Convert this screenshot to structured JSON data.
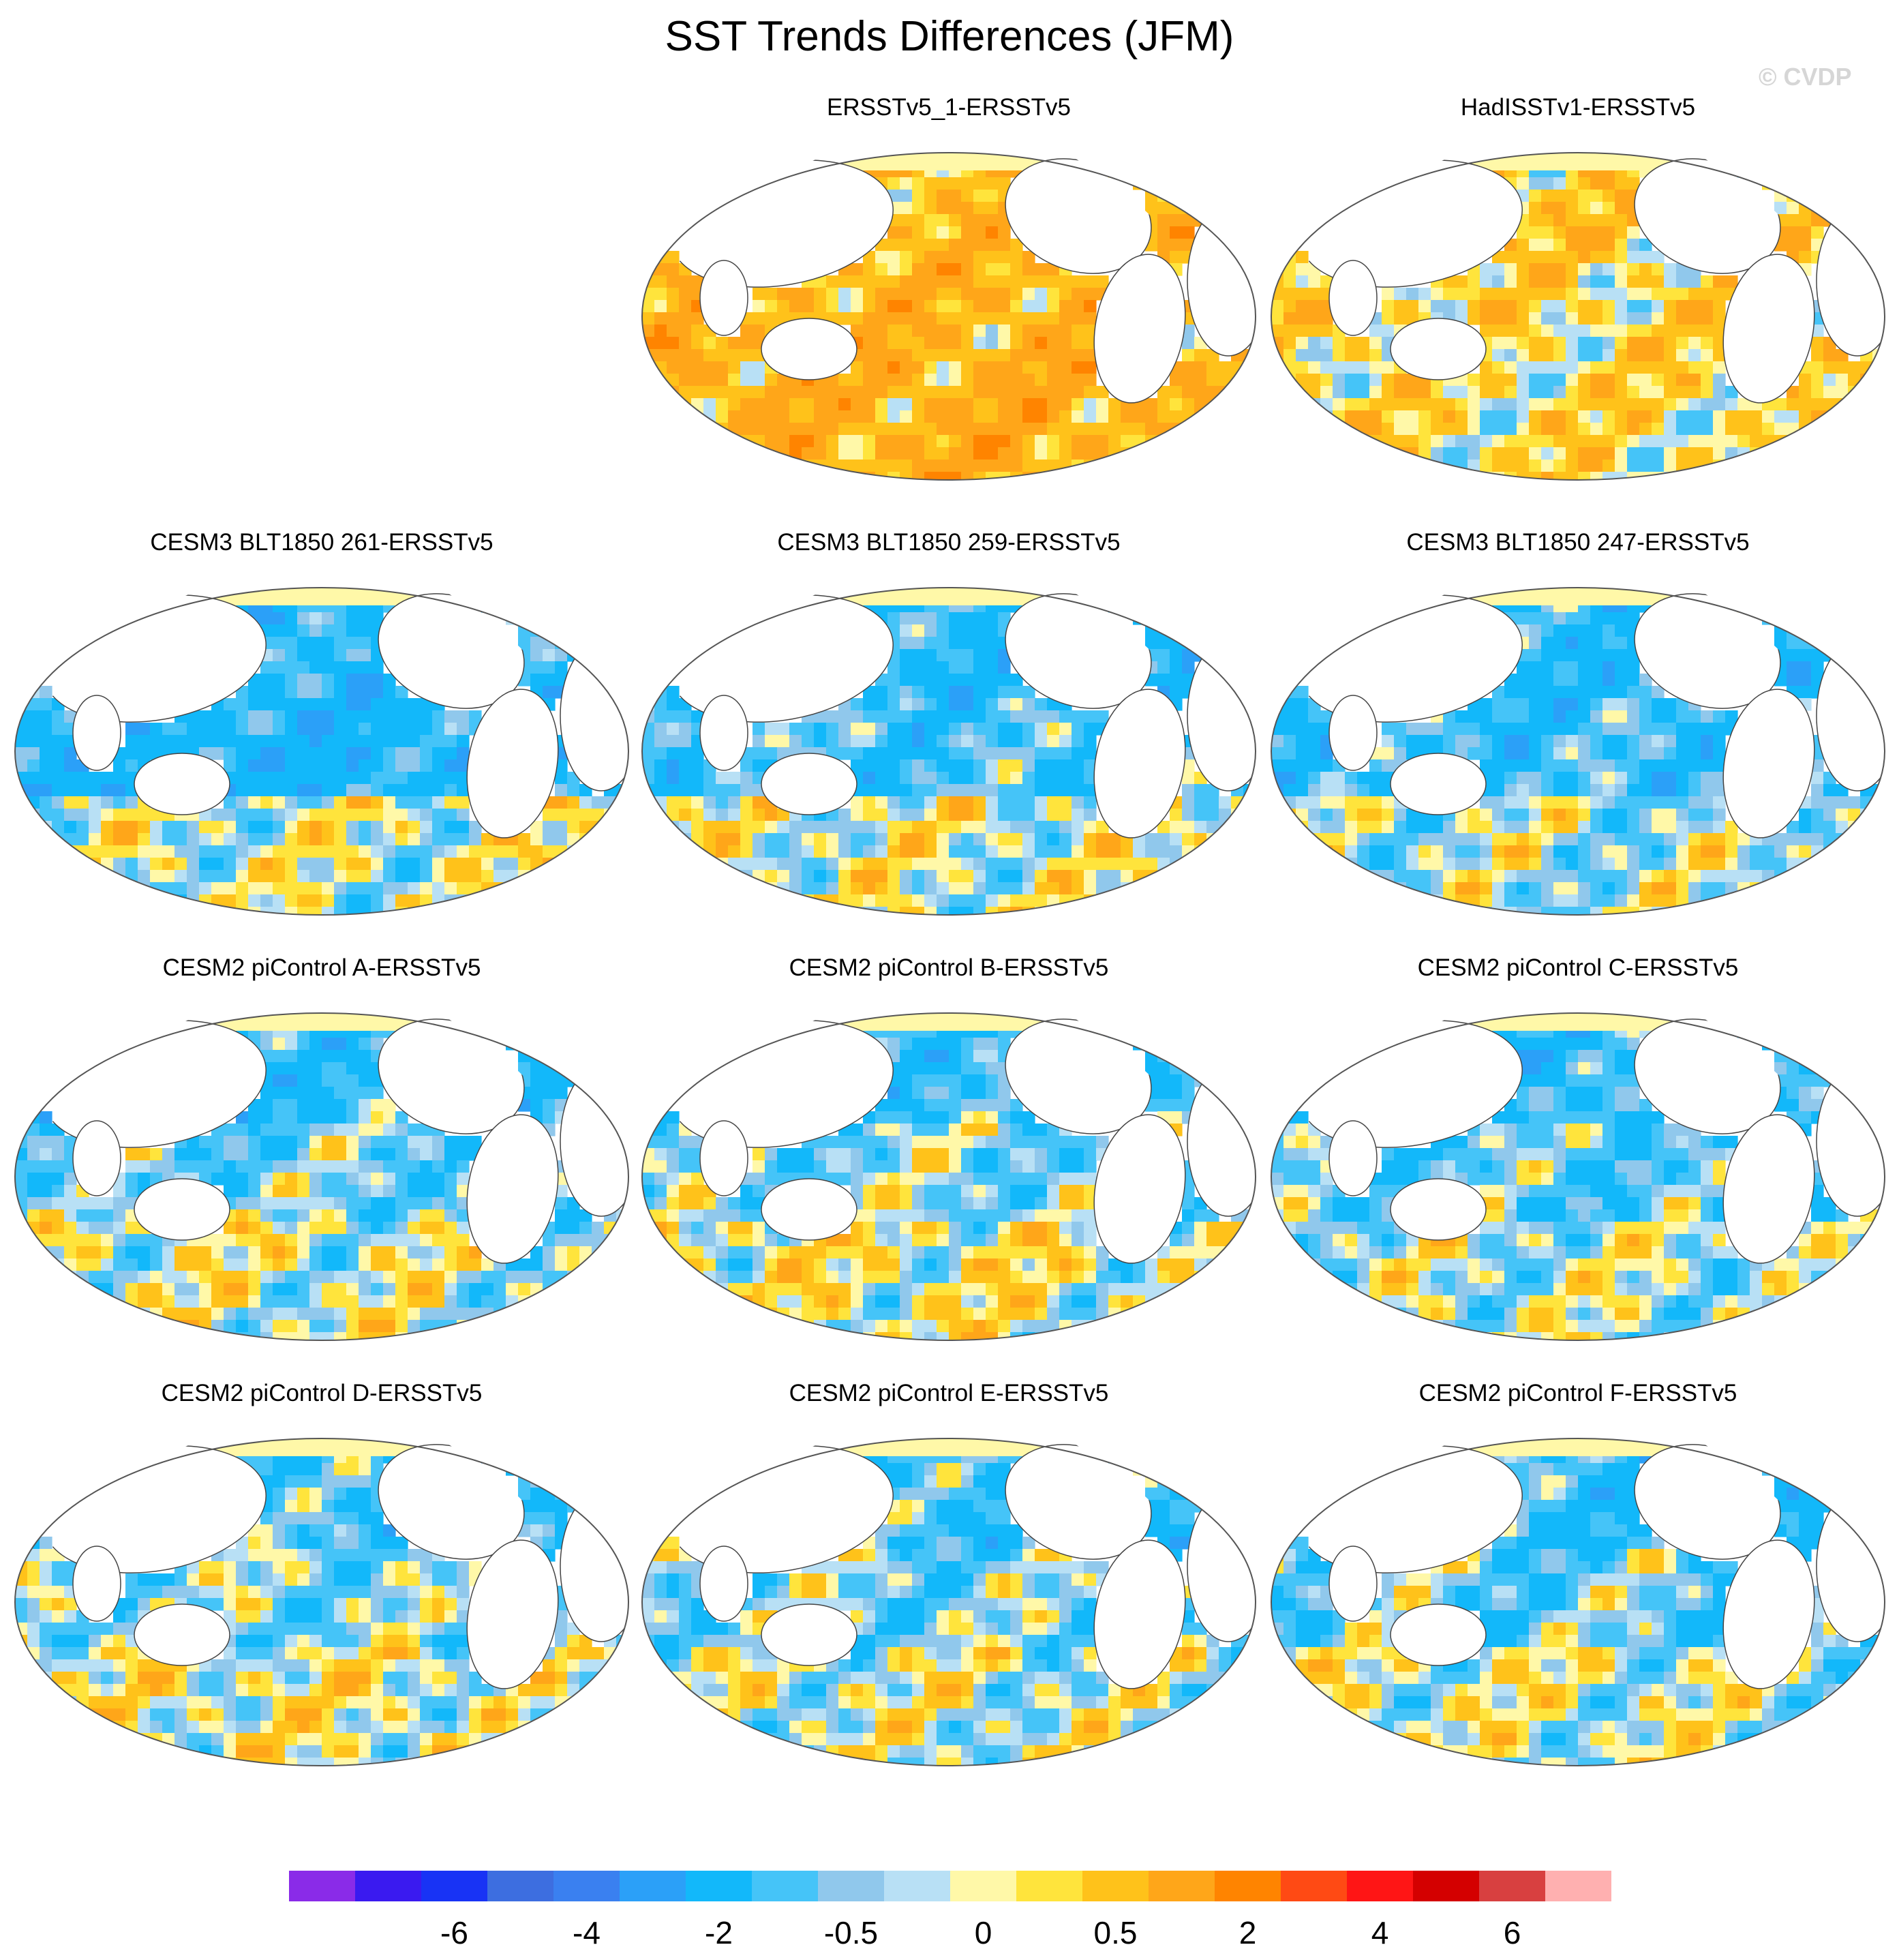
{
  "figure": {
    "title": "SST Trends Differences (JFM)",
    "watermark": "© CVDP"
  },
  "chart_data": {
    "type": "heatmap",
    "title": "SST Trends Differences (JFM)",
    "projection": "Robinson (Pacific-centered global map)",
    "panels": [
      {
        "title": "ERSSTv5_1-ERSSTv5",
        "pattern": {
          "tropics": 1.0,
          "north": 0.8,
          "south": 1.2,
          "east": 0.7,
          "west": 1.0
        }
      },
      {
        "title": "HadISSTv1-ERSSTv5",
        "pattern": {
          "tropics": 0.4,
          "north": 0.6,
          "south": 0.3,
          "east": 0.2,
          "west": 0.4
        }
      },
      {
        "title": "CESM3 BLT1850 261-ERSSTv5",
        "pattern": {
          "tropics": -1.5,
          "north": -1.2,
          "south": 0.5,
          "east": -1.0,
          "west": -1.3
        }
      },
      {
        "title": "CESM3 BLT1850 259-ERSSTv5",
        "pattern": {
          "tropics": -0.8,
          "north": -1.3,
          "south": 0.4,
          "east": -0.9,
          "west": -0.9
        }
      },
      {
        "title": "CESM3 BLT1850 247-ERSSTv5",
        "pattern": {
          "tropics": -0.9,
          "north": -1.1,
          "south": 0.2,
          "east": -0.9,
          "west": -1.1
        }
      },
      {
        "title": "CESM2 piControl A-ERSSTv5",
        "pattern": {
          "tropics": -0.4,
          "north": -1.1,
          "south": 0.3,
          "east": -1.2,
          "west": -0.7
        }
      },
      {
        "title": "CESM2 piControl B-ERSSTv5",
        "pattern": {
          "tropics": -0.2,
          "north": -1.0,
          "south": 0.5,
          "east": -1.1,
          "west": -0.6
        }
      },
      {
        "title": "CESM2 piControl C-ERSSTv5",
        "pattern": {
          "tropics": -0.5,
          "north": -1.2,
          "south": 0.2,
          "east": -1.3,
          "west": -0.9
        }
      },
      {
        "title": "CESM2 piControl D-ERSSTv5",
        "pattern": {
          "tropics": -0.3,
          "north": -1.0,
          "south": 0.4,
          "east": -1.3,
          "west": -0.5
        }
      },
      {
        "title": "CESM2 piControl E-ERSSTv5",
        "pattern": {
          "tropics": -0.3,
          "north": -0.9,
          "south": 0.3,
          "east": -1.2,
          "west": -0.8
        }
      },
      {
        "title": "CESM2 piControl F-ERSSTv5",
        "pattern": {
          "tropics": -0.4,
          "north": -1.0,
          "south": 0.3,
          "east": -1.2,
          "west": -0.8
        }
      }
    ],
    "colorbar": {
      "colors": [
        "#8a2be8",
        "#3a1af0",
        "#1833f5",
        "#3d6ee0",
        "#3a80f0",
        "#2ba0f8",
        "#12b8fa",
        "#45c4f8",
        "#90c8ec",
        "#b8e0f5",
        "#fff8a8",
        "#ffe43c",
        "#ffc21a",
        "#ffa619",
        "#ff8400",
        "#ff4a14",
        "#ff1515",
        "#d40000",
        "#d84040",
        "#ffb0b0"
      ],
      "levels": [
        -8,
        -7,
        -6,
        -5,
        -4,
        -3,
        -2,
        -1,
        -0.5,
        -0.2,
        0,
        0.2,
        0.5,
        1,
        2,
        3,
        4,
        5,
        6,
        7
      ],
      "tick_labels": [
        "-6",
        "-4",
        "-2",
        "-0.5",
        "0",
        "0.5",
        "2",
        "4",
        "6"
      ],
      "tick_boundary_index": [
        2,
        4,
        6,
        8,
        10,
        12,
        14,
        16,
        18
      ]
    }
  }
}
